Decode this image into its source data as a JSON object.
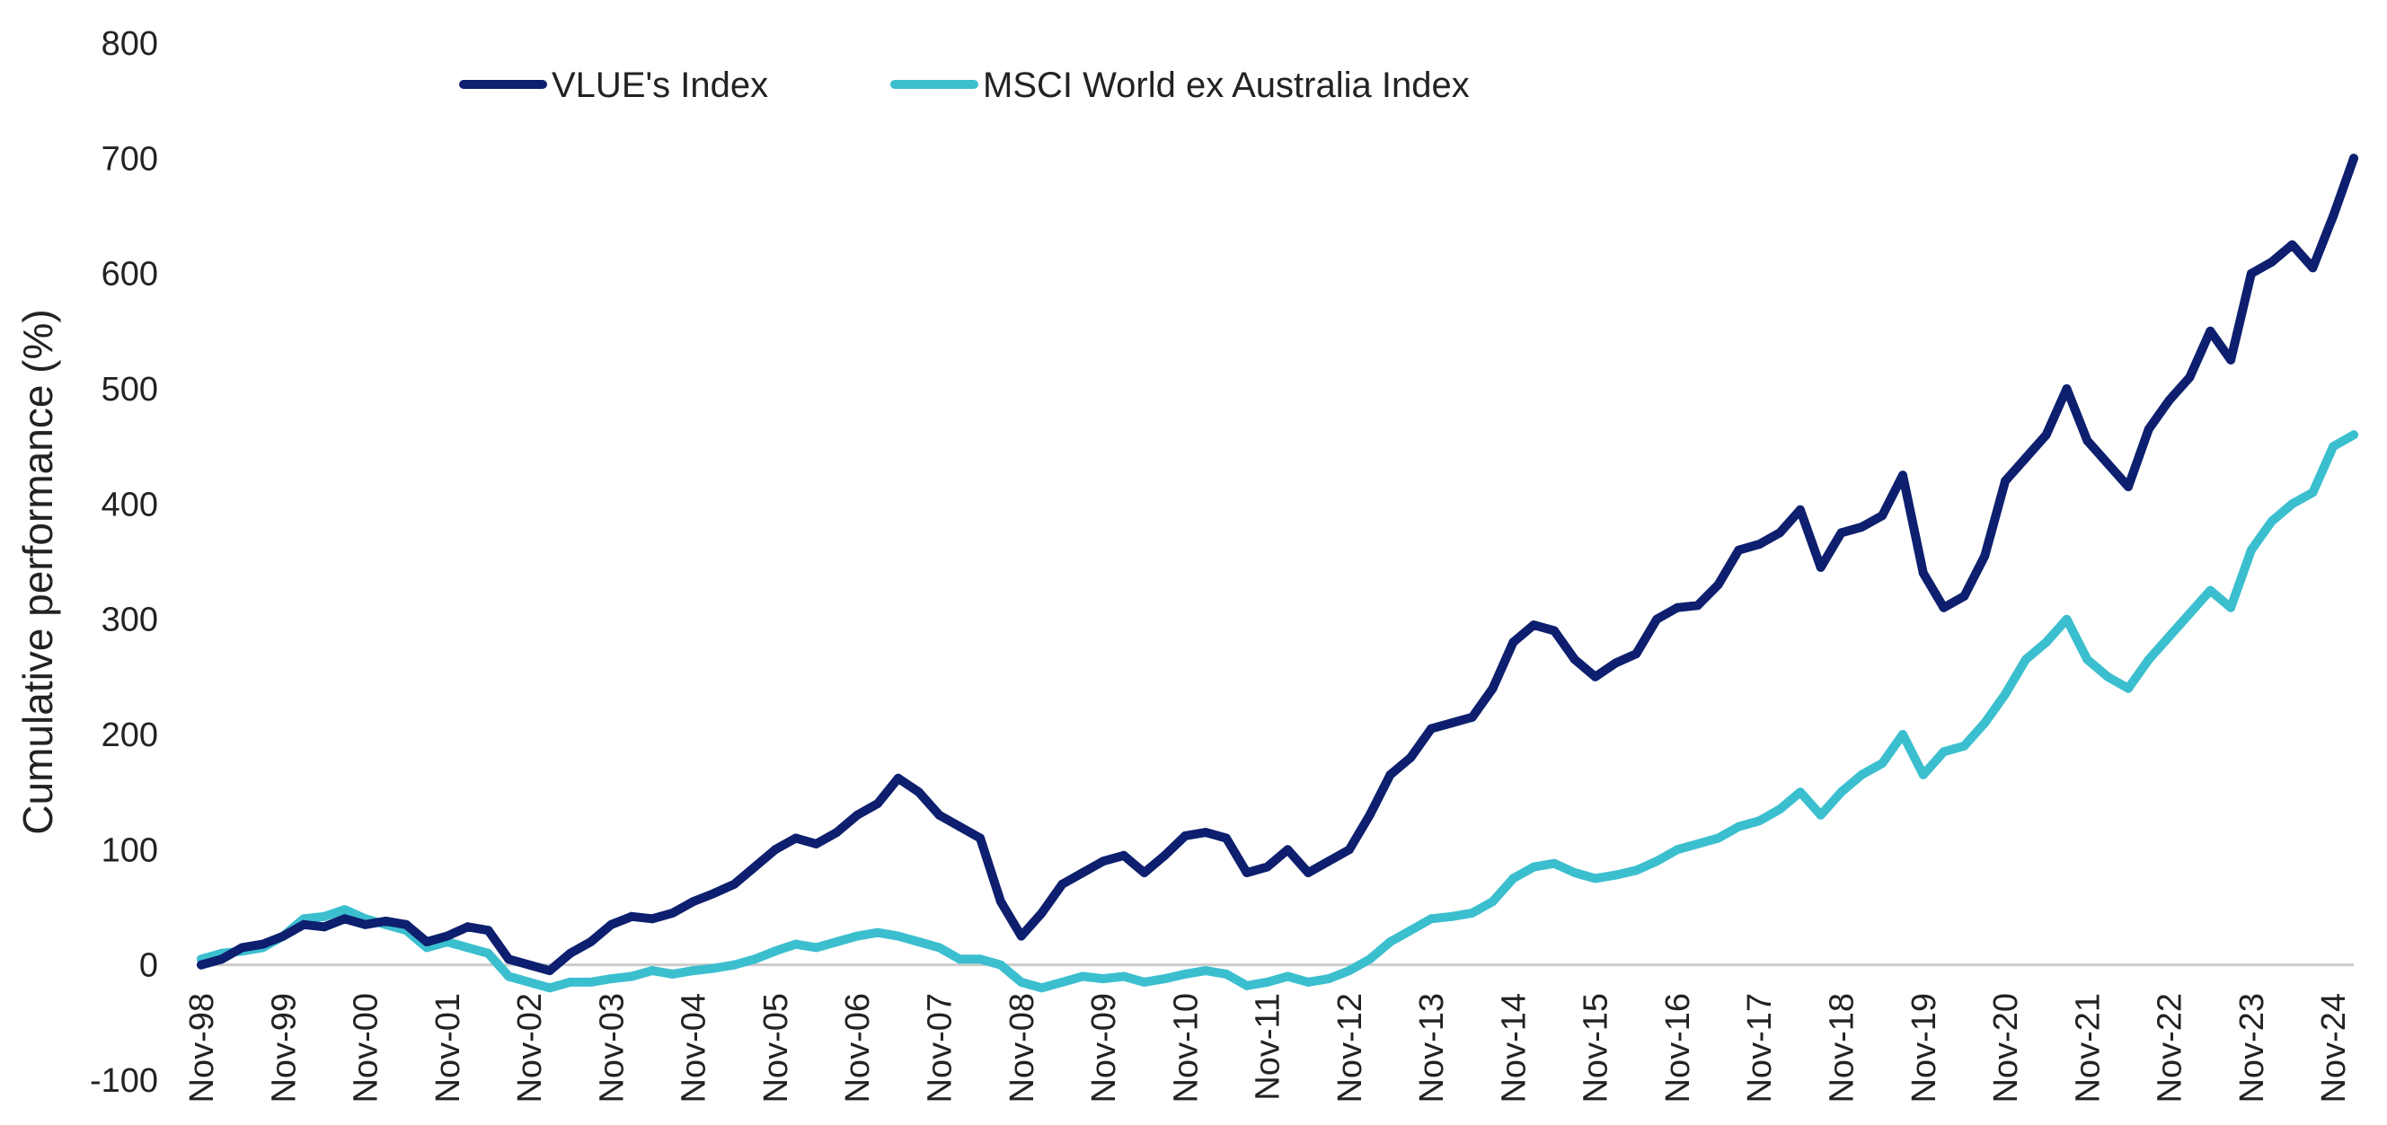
{
  "chart_data": {
    "type": "line",
    "title": "",
    "xlabel": "",
    "ylabel": "Cumulative performance (%)",
    "ylim": [
      -100,
      800
    ],
    "yticks": [
      -100,
      0,
      100,
      200,
      300,
      400,
      500,
      600,
      700,
      800
    ],
    "x_start": "Nov-98",
    "x_end": "Feb-25",
    "x_tick_labels": [
      "Nov-98",
      "Nov-99",
      "Nov-00",
      "Nov-01",
      "Nov-02",
      "Nov-03",
      "Nov-04",
      "Nov-05",
      "Nov-06",
      "Nov-07",
      "Nov-08",
      "Nov-09",
      "Nov-10",
      "Nov-11",
      "Nov-12",
      "Nov-13",
      "Nov-14",
      "Nov-15",
      "Nov-16",
      "Nov-17",
      "Nov-18",
      "Nov-19",
      "Nov-20",
      "Nov-21",
      "Nov-22",
      "Nov-23",
      "Nov-24"
    ],
    "grid": false,
    "legend_position": "top",
    "zero_line_color": "#cccccc",
    "series": [
      {
        "name": "VLUE's Index",
        "color": "#0d1f6e",
        "points": [
          [
            "Nov-98",
            0
          ],
          [
            "Feb-99",
            5
          ],
          [
            "May-99",
            15
          ],
          [
            "Aug-99",
            18
          ],
          [
            "Nov-99",
            25
          ],
          [
            "Feb-00",
            35
          ],
          [
            "May-00",
            33
          ],
          [
            "Aug-00",
            40
          ],
          [
            "Nov-00",
            35
          ],
          [
            "Feb-01",
            38
          ],
          [
            "May-01",
            35
          ],
          [
            "Aug-01",
            20
          ],
          [
            "Nov-01",
            25
          ],
          [
            "Feb-02",
            33
          ],
          [
            "May-02",
            30
          ],
          [
            "Aug-02",
            5
          ],
          [
            "Nov-02",
            0
          ],
          [
            "Feb-03",
            -5
          ],
          [
            "May-03",
            10
          ],
          [
            "Aug-03",
            20
          ],
          [
            "Nov-03",
            35
          ],
          [
            "Feb-04",
            42
          ],
          [
            "May-04",
            40
          ],
          [
            "Aug-04",
            45
          ],
          [
            "Nov-04",
            55
          ],
          [
            "Feb-05",
            62
          ],
          [
            "May-05",
            70
          ],
          [
            "Aug-05",
            85
          ],
          [
            "Nov-05",
            100
          ],
          [
            "Feb-06",
            110
          ],
          [
            "May-06",
            105
          ],
          [
            "Aug-06",
            115
          ],
          [
            "Nov-06",
            130
          ],
          [
            "Feb-07",
            140
          ],
          [
            "May-07",
            162
          ],
          [
            "Aug-07",
            150
          ],
          [
            "Nov-07",
            130
          ],
          [
            "Feb-08",
            120
          ],
          [
            "May-08",
            110
          ],
          [
            "Aug-08",
            55
          ],
          [
            "Nov-08",
            25
          ],
          [
            "Feb-09",
            45
          ],
          [
            "May-09",
            70
          ],
          [
            "Aug-09",
            80
          ],
          [
            "Nov-09",
            90
          ],
          [
            "Feb-10",
            95
          ],
          [
            "May-10",
            80
          ],
          [
            "Aug-10",
            95
          ],
          [
            "Nov-10",
            112
          ],
          [
            "Feb-11",
            115
          ],
          [
            "May-11",
            110
          ],
          [
            "Aug-11",
            80
          ],
          [
            "Nov-11",
            85
          ],
          [
            "Feb-12",
            100
          ],
          [
            "May-12",
            80
          ],
          [
            "Aug-12",
            90
          ],
          [
            "Nov-12",
            100
          ],
          [
            "Feb-13",
            130
          ],
          [
            "May-13",
            165
          ],
          [
            "Aug-13",
            180
          ],
          [
            "Nov-13",
            205
          ],
          [
            "Feb-14",
            210
          ],
          [
            "May-14",
            215
          ],
          [
            "Aug-14",
            240
          ],
          [
            "Nov-14",
            280
          ],
          [
            "Feb-15",
            295
          ],
          [
            "May-15",
            290
          ],
          [
            "Aug-15",
            265
          ],
          [
            "Nov-15",
            250
          ],
          [
            "Feb-16",
            262
          ],
          [
            "May-16",
            270
          ],
          [
            "Aug-16",
            300
          ],
          [
            "Nov-16",
            310
          ],
          [
            "Feb-17",
            312
          ],
          [
            "May-17",
            330
          ],
          [
            "Aug-17",
            360
          ],
          [
            "Nov-17",
            365
          ],
          [
            "Feb-18",
            375
          ],
          [
            "May-18",
            395
          ],
          [
            "Aug-18",
            345
          ],
          [
            "Nov-18",
            375
          ],
          [
            "Feb-19",
            380
          ],
          [
            "May-19",
            390
          ],
          [
            "Aug-19",
            425
          ],
          [
            "Nov-19",
            340
          ],
          [
            "Feb-20",
            310
          ],
          [
            "May-20",
            320
          ],
          [
            "Aug-20",
            355
          ],
          [
            "Nov-20",
            420
          ],
          [
            "Feb-21",
            440
          ],
          [
            "May-21",
            460
          ],
          [
            "Aug-21",
            500
          ],
          [
            "Nov-21",
            455
          ],
          [
            "Feb-22",
            435
          ],
          [
            "May-22",
            415
          ],
          [
            "Aug-22",
            465
          ],
          [
            "Nov-22",
            490
          ],
          [
            "Feb-23",
            510
          ],
          [
            "May-23",
            550
          ],
          [
            "Aug-23",
            525
          ],
          [
            "Nov-23",
            600
          ],
          [
            "Feb-24",
            610
          ],
          [
            "May-24",
            625
          ],
          [
            "Aug-24",
            605
          ],
          [
            "Nov-24",
            650
          ],
          [
            "Feb-25",
            700
          ]
        ]
      },
      {
        "name": "MSCI World ex Australia Index",
        "color": "#3bbfcf",
        "points": [
          [
            "Nov-98",
            5
          ],
          [
            "Feb-99",
            10
          ],
          [
            "May-99",
            12
          ],
          [
            "Aug-99",
            15
          ],
          [
            "Nov-99",
            25
          ],
          [
            "Feb-00",
            40
          ],
          [
            "May-00",
            42
          ],
          [
            "Aug-00",
            48
          ],
          [
            "Nov-00",
            40
          ],
          [
            "Feb-01",
            35
          ],
          [
            "May-01",
            30
          ],
          [
            "Aug-01",
            15
          ],
          [
            "Nov-01",
            20
          ],
          [
            "Feb-02",
            15
          ],
          [
            "May-02",
            10
          ],
          [
            "Aug-02",
            -10
          ],
          [
            "Nov-02",
            -15
          ],
          [
            "Feb-03",
            -20
          ],
          [
            "May-03",
            -15
          ],
          [
            "Aug-03",
            -15
          ],
          [
            "Nov-03",
            -12
          ],
          [
            "Feb-04",
            -10
          ],
          [
            "May-04",
            -5
          ],
          [
            "Aug-04",
            -8
          ],
          [
            "Nov-04",
            -5
          ],
          [
            "Feb-05",
            -3
          ],
          [
            "May-05",
            0
          ],
          [
            "Aug-05",
            5
          ],
          [
            "Nov-05",
            12
          ],
          [
            "Feb-06",
            18
          ],
          [
            "May-06",
            15
          ],
          [
            "Aug-06",
            20
          ],
          [
            "Nov-06",
            25
          ],
          [
            "Feb-07",
            28
          ],
          [
            "May-07",
            25
          ],
          [
            "Aug-07",
            20
          ],
          [
            "Nov-07",
            15
          ],
          [
            "Feb-08",
            5
          ],
          [
            "May-08",
            5
          ],
          [
            "Aug-08",
            0
          ],
          [
            "Nov-08",
            -15
          ],
          [
            "Feb-09",
            -20
          ],
          [
            "May-09",
            -15
          ],
          [
            "Aug-09",
            -10
          ],
          [
            "Nov-09",
            -12
          ],
          [
            "Feb-10",
            -10
          ],
          [
            "May-10",
            -15
          ],
          [
            "Aug-10",
            -12
          ],
          [
            "Nov-10",
            -8
          ],
          [
            "Feb-11",
            -5
          ],
          [
            "May-11",
            -8
          ],
          [
            "Aug-11",
            -18
          ],
          [
            "Nov-11",
            -15
          ],
          [
            "Feb-12",
            -10
          ],
          [
            "May-12",
            -15
          ],
          [
            "Aug-12",
            -12
          ],
          [
            "Nov-12",
            -5
          ],
          [
            "Feb-13",
            5
          ],
          [
            "May-13",
            20
          ],
          [
            "Aug-13",
            30
          ],
          [
            "Nov-13",
            40
          ],
          [
            "Feb-14",
            42
          ],
          [
            "May-14",
            45
          ],
          [
            "Aug-14",
            55
          ],
          [
            "Nov-14",
            75
          ],
          [
            "Feb-15",
            85
          ],
          [
            "May-15",
            88
          ],
          [
            "Aug-15",
            80
          ],
          [
            "Nov-15",
            75
          ],
          [
            "Feb-16",
            78
          ],
          [
            "May-16",
            82
          ],
          [
            "Aug-16",
            90
          ],
          [
            "Nov-16",
            100
          ],
          [
            "Feb-17",
            105
          ],
          [
            "May-17",
            110
          ],
          [
            "Aug-17",
            120
          ],
          [
            "Nov-17",
            125
          ],
          [
            "Feb-18",
            135
          ],
          [
            "May-18",
            150
          ],
          [
            "Aug-18",
            130
          ],
          [
            "Nov-18",
            150
          ],
          [
            "Feb-19",
            165
          ],
          [
            "May-19",
            175
          ],
          [
            "Aug-19",
            200
          ],
          [
            "Nov-19",
            165
          ],
          [
            "Feb-20",
            185
          ],
          [
            "May-20",
            190
          ],
          [
            "Aug-20",
            210
          ],
          [
            "Nov-20",
            235
          ],
          [
            "Feb-21",
            265
          ],
          [
            "May-21",
            280
          ],
          [
            "Aug-21",
            300
          ],
          [
            "Nov-21",
            265
          ],
          [
            "Feb-22",
            250
          ],
          [
            "May-22",
            240
          ],
          [
            "Aug-22",
            265
          ],
          [
            "Nov-22",
            285
          ],
          [
            "Feb-23",
            305
          ],
          [
            "May-23",
            325
          ],
          [
            "Aug-23",
            310
          ],
          [
            "Nov-23",
            360
          ],
          [
            "Feb-24",
            385
          ],
          [
            "May-24",
            400
          ],
          [
            "Aug-24",
            410
          ],
          [
            "Nov-24",
            450
          ],
          [
            "Feb-25",
            460
          ]
        ]
      }
    ]
  }
}
